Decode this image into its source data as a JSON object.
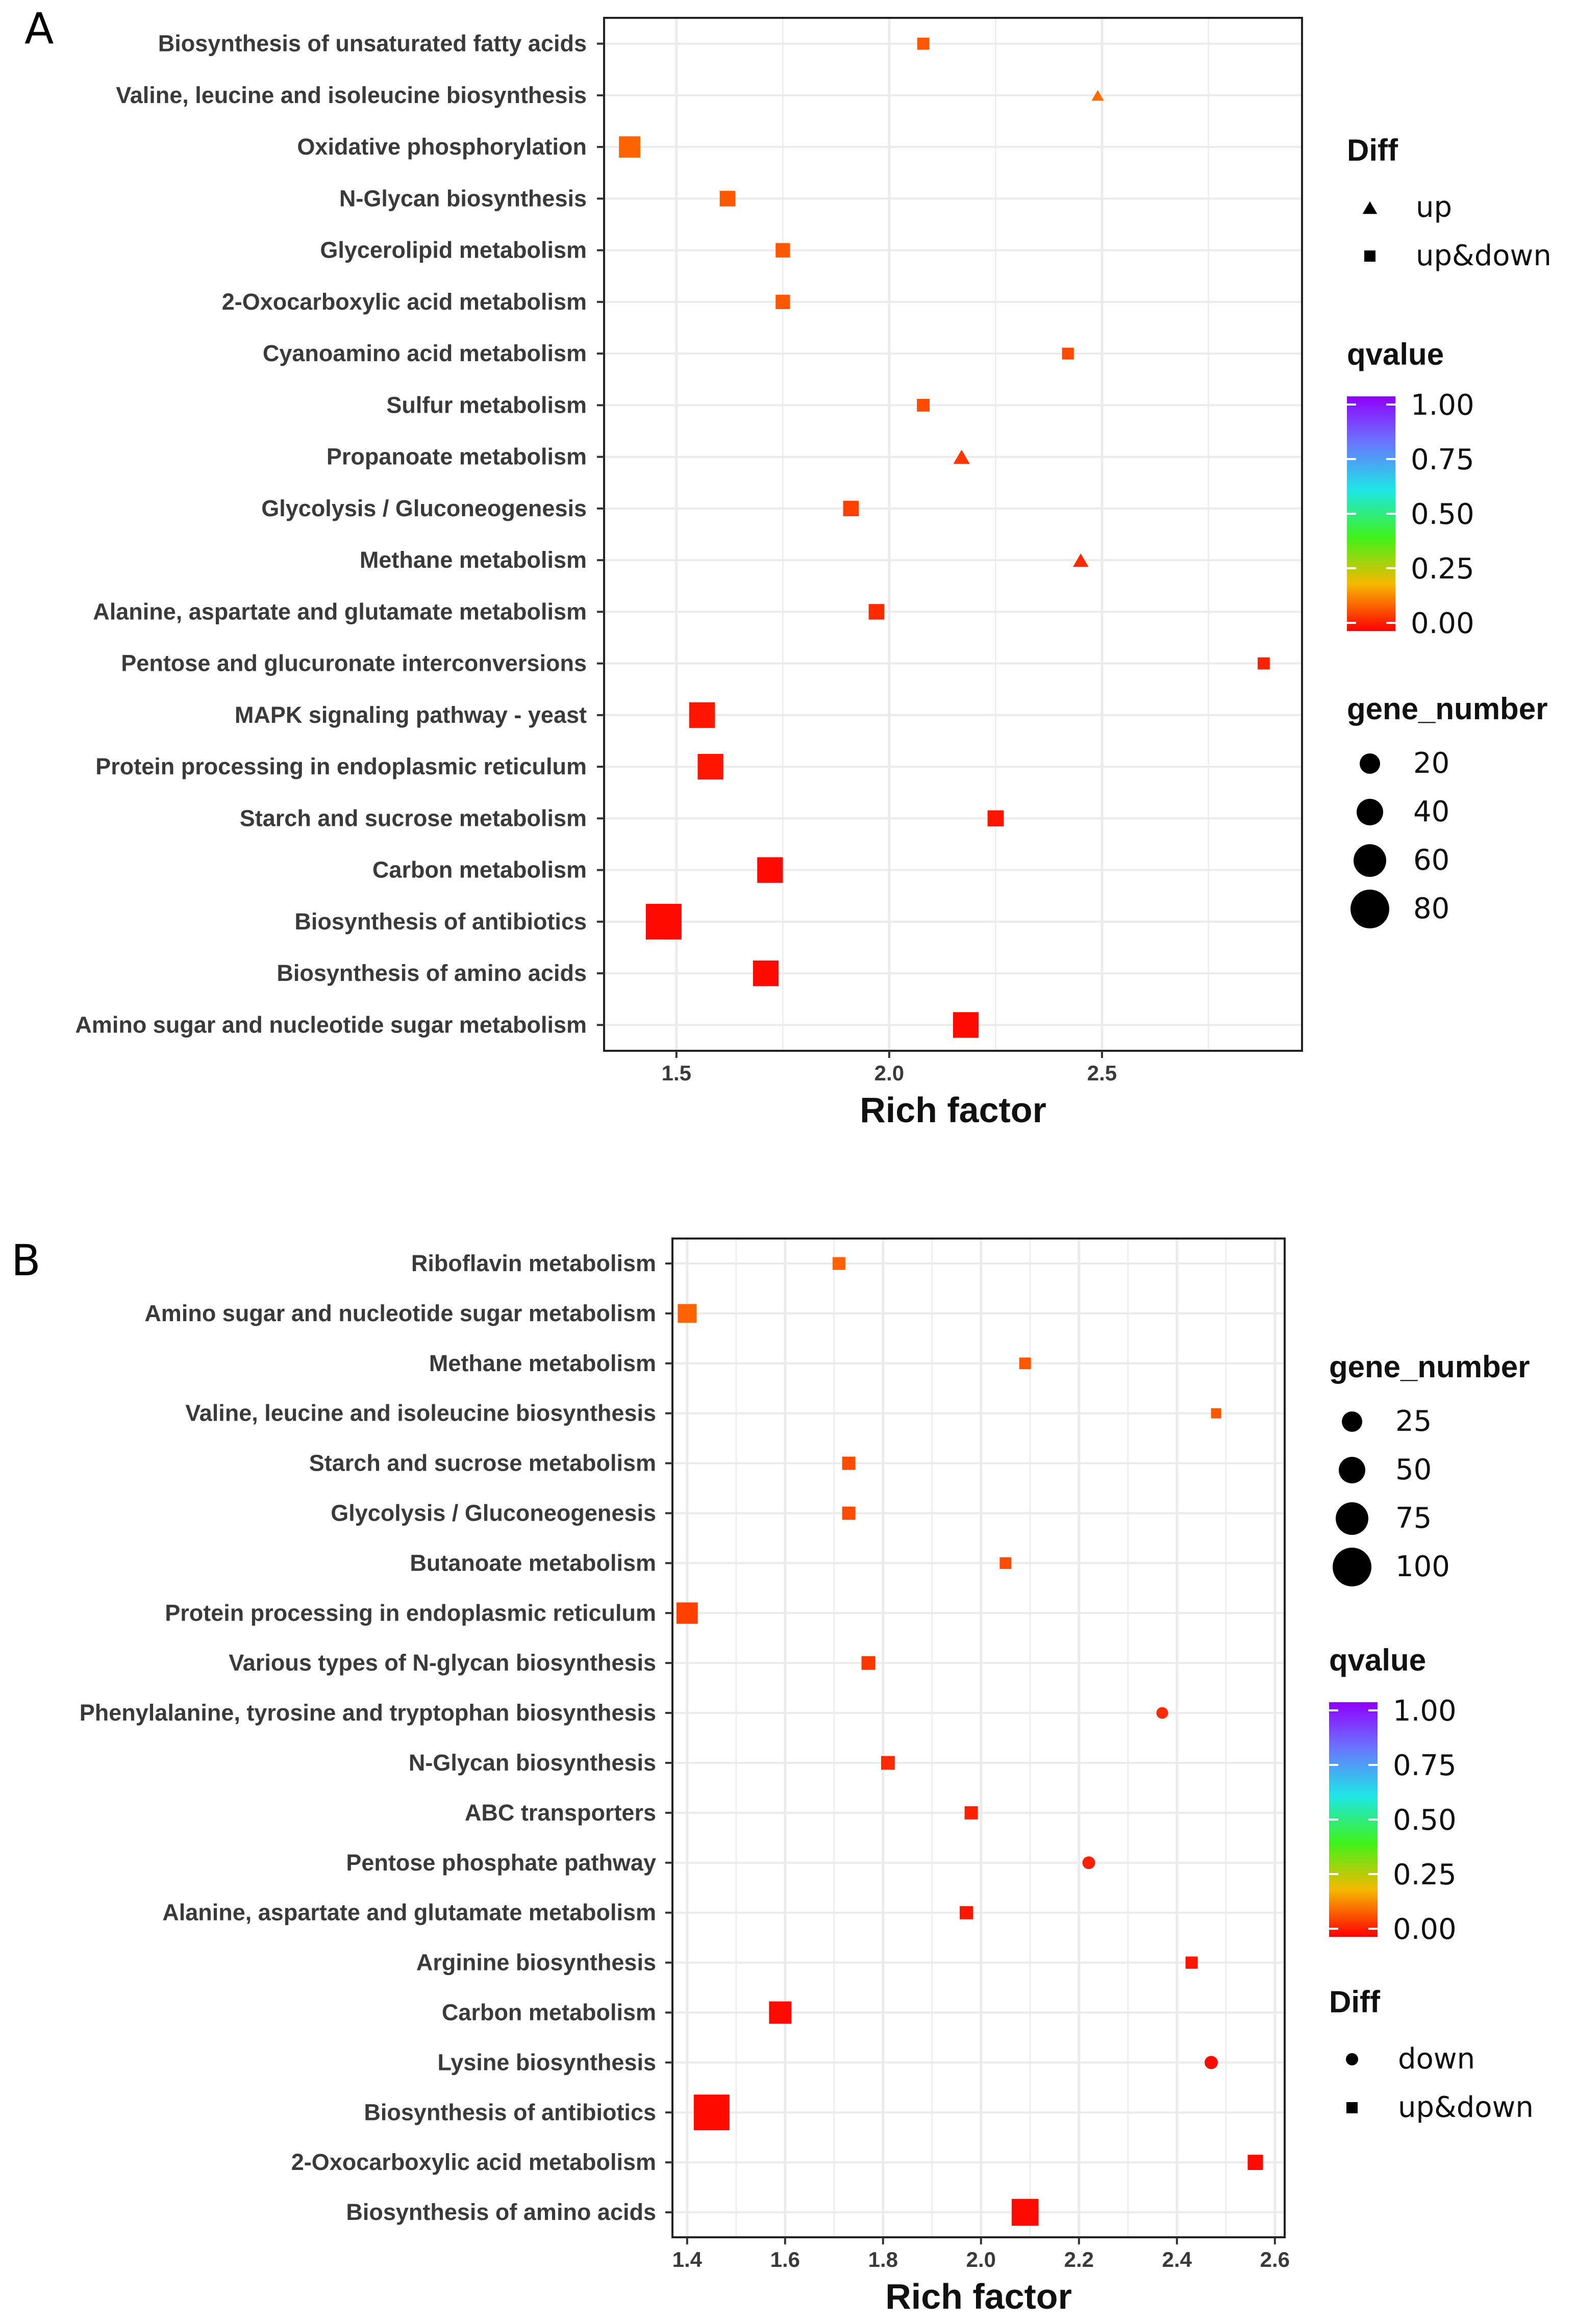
{
  "chart_data": [
    {
      "panel": "A",
      "type": "scatter",
      "title": "",
      "xlabel": "Rich factor",
      "ylabel": "",
      "xlim": [
        1.33,
        2.97
      ],
      "xticks": [
        1.5,
        2.0,
        2.5
      ],
      "xtick_labels": [
        "1.5",
        "2.0",
        "2.5"
      ],
      "grid": true,
      "legend_order": [
        "diff",
        "qvalue",
        "gene"
      ],
      "points": [
        {
          "term": "Biosynthesis of unsaturated fatty acids",
          "rich": 2.08,
          "genes": 8,
          "q": 0.07,
          "diff": "up&down"
        },
        {
          "term": "Valine, leucine and isoleucine biosynthesis",
          "rich": 2.49,
          "genes": 5,
          "q": 0.09,
          "diff": "up"
        },
        {
          "term": "Oxidative phosphorylation",
          "rich": 1.39,
          "genes": 40,
          "q": 0.08,
          "diff": "up&down"
        },
        {
          "term": "N-Glycan biosynthesis",
          "rich": 1.62,
          "genes": 20,
          "q": 0.07,
          "diff": "up&down"
        },
        {
          "term": "Glycerolipid metabolism",
          "rich": 1.75,
          "genes": 16,
          "q": 0.07,
          "diff": "up&down"
        },
        {
          "term": "2-Oxocarboxylic acid metabolism",
          "rich": 1.75,
          "genes": 16,
          "q": 0.07,
          "diff": "up&down"
        },
        {
          "term": "Cyanoamino acid metabolism",
          "rich": 2.42,
          "genes": 7,
          "q": 0.06,
          "diff": "up&down"
        },
        {
          "term": "Sulfur metabolism",
          "rich": 2.08,
          "genes": 10,
          "q": 0.06,
          "diff": "up&down"
        },
        {
          "term": "Propanoate metabolism",
          "rich": 2.17,
          "genes": 18,
          "q": 0.04,
          "diff": "up"
        },
        {
          "term": "Glycolysis / Gluconeogenesis",
          "rich": 1.91,
          "genes": 20,
          "q": 0.05,
          "diff": "up&down"
        },
        {
          "term": "Methane metabolism",
          "rich": 2.45,
          "genes": 15,
          "q": 0.03,
          "diff": "up"
        },
        {
          "term": "Alanine, aspartate and glutamate metabolism",
          "rich": 1.97,
          "genes": 20,
          "q": 0.03,
          "diff": "up&down"
        },
        {
          "term": "Pentose and glucuronate interconversions",
          "rich": 2.88,
          "genes": 8,
          "q": 0.02,
          "diff": "up&down"
        },
        {
          "term": "MAPK signaling pathway - yeast",
          "rich": 1.56,
          "genes": 55,
          "q": 0.01,
          "diff": "up&down"
        },
        {
          "term": "Protein processing in endoplasmic reticulum",
          "rich": 1.58,
          "genes": 55,
          "q": 0.01,
          "diff": "up&down"
        },
        {
          "term": "Starch and sucrose metabolism",
          "rich": 2.25,
          "genes": 22,
          "q": 0.01,
          "diff": "up&down"
        },
        {
          "term": "Carbon metabolism",
          "rich": 1.72,
          "genes": 55,
          "q": 0.0,
          "diff": "up&down"
        },
        {
          "term": "Biosynthesis of antibiotics",
          "rich": 1.47,
          "genes": 90,
          "q": 0.0,
          "diff": "up&down"
        },
        {
          "term": "Biosynthesis of amino acids",
          "rich": 1.71,
          "genes": 55,
          "q": 0.0,
          "diff": "up&down"
        },
        {
          "term": "Amino sugar and nucleotide sugar metabolism",
          "rich": 2.18,
          "genes": 55,
          "q": 0.0,
          "diff": "up&down"
        }
      ],
      "legends": {
        "diff": {
          "title": "Diff",
          "items": [
            {
              "label": "up",
              "shape": "triangle"
            },
            {
              "label": "up&down",
              "shape": "square"
            }
          ]
        },
        "qvalue": {
          "title": "qvalue",
          "ticks": [
            "1.00",
            "0.75",
            "0.50",
            "0.25",
            "0.00"
          ]
        },
        "gene": {
          "title": "gene_number",
          "items": [
            {
              "label": "20",
              "value": 20
            },
            {
              "label": "40",
              "value": 40
            },
            {
              "label": "60",
              "value": 60
            },
            {
              "label": "80",
              "value": 80
            }
          ]
        }
      }
    },
    {
      "panel": "B",
      "type": "scatter",
      "title": "",
      "xlabel": "Rich factor",
      "ylabel": "",
      "xlim": [
        1.37,
        2.62
      ],
      "xticks": [
        1.4,
        1.6,
        1.8,
        2.0,
        2.2,
        2.4,
        2.6
      ],
      "xtick_labels": [
        "1.4",
        "1.6",
        "1.8",
        "2.0",
        "2.2",
        "2.4",
        "2.6"
      ],
      "grid": true,
      "legend_order": [
        "gene",
        "qvalue",
        "diff"
      ],
      "points": [
        {
          "term": "Riboflavin metabolism",
          "rich": 1.71,
          "genes": 14,
          "q": 0.08,
          "diff": "up&down"
        },
        {
          "term": "Amino sugar and nucleotide sugar metabolism",
          "rich": 1.4,
          "genes": 38,
          "q": 0.08,
          "diff": "up&down"
        },
        {
          "term": "Methane metabolism",
          "rich": 2.09,
          "genes": 10,
          "q": 0.07,
          "diff": "up&down"
        },
        {
          "term": "Valine, leucine and isoleucine biosynthesis",
          "rich": 2.48,
          "genes": 4,
          "q": 0.07,
          "diff": "up&down"
        },
        {
          "term": "Starch and sucrose metabolism",
          "rich": 1.73,
          "genes": 16,
          "q": 0.06,
          "diff": "up&down"
        },
        {
          "term": "Glycolysis / Gluconeogenesis",
          "rich": 1.73,
          "genes": 16,
          "q": 0.06,
          "diff": "up&down"
        },
        {
          "term": "Butanoate metabolism",
          "rich": 2.05,
          "genes": 10,
          "q": 0.06,
          "diff": "up&down"
        },
        {
          "term": "Protein processing in endoplasmic reticulum",
          "rich": 1.4,
          "genes": 48,
          "q": 0.05,
          "diff": "up&down"
        },
        {
          "term": "Various types of N-glycan biosynthesis",
          "rich": 1.77,
          "genes": 18,
          "q": 0.04,
          "diff": "up&down"
        },
        {
          "term": "Phenylalanine, tyrosine and tryptophan biosynthesis",
          "rich": 2.37,
          "genes": 10,
          "q": 0.03,
          "diff": "down"
        },
        {
          "term": "N-Glycan biosynthesis",
          "rich": 1.81,
          "genes": 18,
          "q": 0.03,
          "diff": "up&down"
        },
        {
          "term": "ABC transporters",
          "rich": 1.98,
          "genes": 16,
          "q": 0.02,
          "diff": "up&down"
        },
        {
          "term": "Pentose phosphate pathway",
          "rich": 2.22,
          "genes": 14,
          "q": 0.02,
          "diff": "down"
        },
        {
          "term": "Alanine, aspartate and glutamate metabolism",
          "rich": 1.97,
          "genes": 16,
          "q": 0.01,
          "diff": "up&down"
        },
        {
          "term": "Arginine biosynthesis",
          "rich": 2.43,
          "genes": 12,
          "q": 0.01,
          "diff": "up&down"
        },
        {
          "term": "Carbon metabolism",
          "rich": 1.59,
          "genes": 52,
          "q": 0.0,
          "diff": "up&down"
        },
        {
          "term": "Lysine biosynthesis",
          "rich": 2.47,
          "genes": 16,
          "q": 0.0,
          "diff": "down"
        },
        {
          "term": "Biosynthesis of antibiotics",
          "rich": 1.45,
          "genes": 105,
          "q": 0.0,
          "diff": "up&down"
        },
        {
          "term": "2-Oxocarboxylic acid metabolism",
          "rich": 2.56,
          "genes": 24,
          "q": 0.0,
          "diff": "up&down"
        },
        {
          "term": "Biosynthesis of amino acids",
          "rich": 2.09,
          "genes": 70,
          "q": 0.0,
          "diff": "up&down"
        }
      ],
      "legends": {
        "gene": {
          "title": "gene_number",
          "items": [
            {
              "label": "25",
              "value": 25
            },
            {
              "label": "50",
              "value": 50
            },
            {
              "label": "75",
              "value": 75
            },
            {
              "label": "100",
              "value": 100
            }
          ]
        },
        "qvalue": {
          "title": "qvalue",
          "ticks": [
            "1.00",
            "0.75",
            "0.50",
            "0.25",
            "0.00"
          ]
        },
        "diff": {
          "title": "Diff",
          "items": [
            {
              "label": "down",
              "shape": "circle"
            },
            {
              "label": "up&down",
              "shape": "square"
            }
          ]
        }
      }
    }
  ]
}
